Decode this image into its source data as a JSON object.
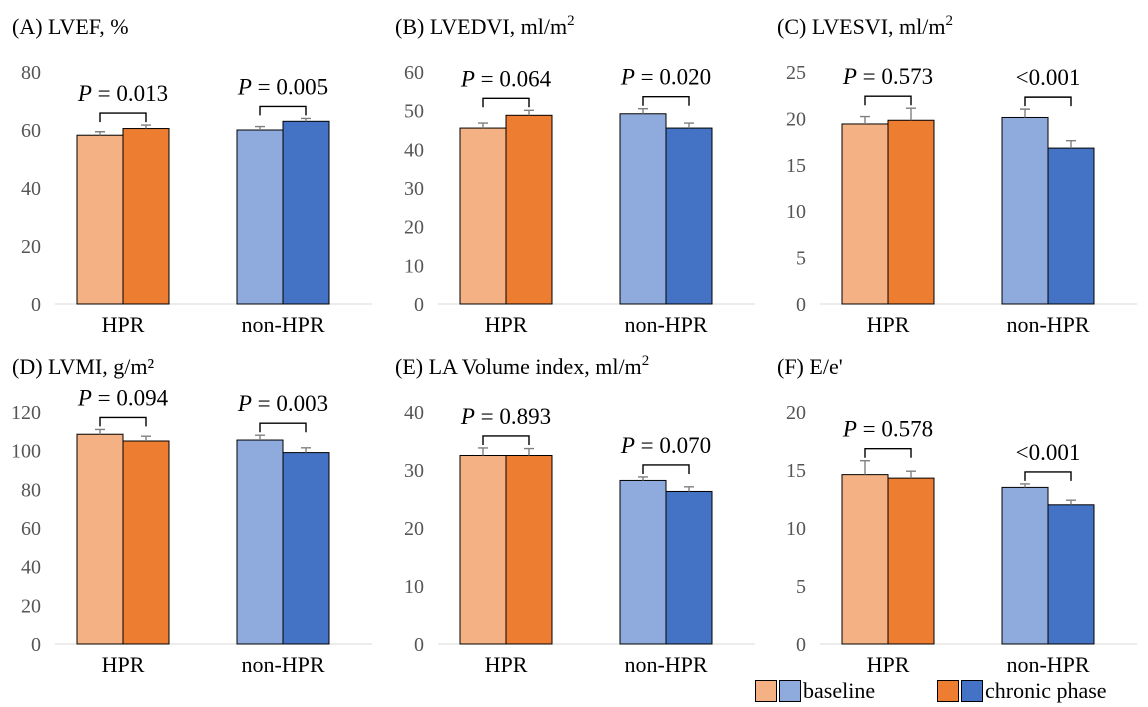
{
  "chart_data": [
    {
      "type": "bar",
      "title": "(A) LVEF, %",
      "title_sup": "",
      "ylim": [
        0,
        80
      ],
      "yticks": [
        0,
        20,
        40,
        60,
        80
      ],
      "categories": [
        "HPR",
        "non-HPR"
      ],
      "series": [
        {
          "name": "baseline",
          "values": [
            58.2,
            60.0
          ],
          "errors": [
            1.2,
            1.2
          ]
        },
        {
          "name": "chronic phase",
          "values": [
            60.5,
            63.0
          ],
          "errors": [
            1.2,
            1.0
          ]
        }
      ],
      "p_values": [
        "0.013",
        "0.005"
      ],
      "p_prefix": [
        true,
        true
      ]
    },
    {
      "type": "bar",
      "title": "(B) LVEDVI, ml/m",
      "title_sup": "2",
      "ylim": [
        0,
        60
      ],
      "yticks": [
        0,
        10,
        20,
        30,
        40,
        50,
        60
      ],
      "categories": [
        "HPR",
        "non-HPR"
      ],
      "series": [
        {
          "name": "baseline",
          "values": [
            45.5,
            49.2
          ],
          "errors": [
            1.3,
            1.3
          ]
        },
        {
          "name": "chronic phase",
          "values": [
            48.8,
            45.5
          ],
          "errors": [
            1.3,
            1.3
          ]
        }
      ],
      "p_values": [
        "0.064",
        "0.020"
      ],
      "p_prefix": [
        true,
        true
      ]
    },
    {
      "type": "bar",
      "title": "(C) LVESVI, ml/m",
      "title_sup": "2",
      "ylim": [
        0,
        25
      ],
      "yticks": [
        0,
        5,
        10,
        15,
        20,
        25
      ],
      "categories": [
        "HPR",
        "non-HPR"
      ],
      "series": [
        {
          "name": "baseline",
          "values": [
            19.4,
            20.1
          ],
          "errors": [
            0.8,
            0.9
          ]
        },
        {
          "name": "chronic phase",
          "values": [
            19.8,
            16.8
          ],
          "errors": [
            1.3,
            0.8
          ]
        }
      ],
      "p_values": [
        "0.573",
        "<0.001"
      ],
      "p_prefix": [
        true,
        false
      ]
    },
    {
      "type": "bar",
      "title": "(D) LVMI, g/m²",
      "title_sup": "",
      "ylim": [
        0,
        120
      ],
      "yticks": [
        0,
        20,
        40,
        60,
        80,
        100,
        120
      ],
      "categories": [
        "HPR",
        "non-HPR"
      ],
      "series": [
        {
          "name": "baseline",
          "values": [
            108.5,
            105.5
          ],
          "errors": [
            2.5,
            2.5
          ]
        },
        {
          "name": "chronic phase",
          "values": [
            105.0,
            99.0
          ],
          "errors": [
            2.5,
            2.5
          ]
        }
      ],
      "p_values": [
        "0.094",
        "0.003"
      ],
      "p_prefix": [
        true,
        true
      ]
    },
    {
      "type": "bar",
      "title": "(E) LA Volume index, ml/m",
      "title_sup": "2",
      "ylim": [
        0,
        40
      ],
      "yticks": [
        0,
        10,
        20,
        30,
        40
      ],
      "categories": [
        "HPR",
        "non-HPR"
      ],
      "series": [
        {
          "name": "baseline",
          "values": [
            32.5,
            28.2
          ],
          "errors": [
            1.3,
            0.6
          ]
        },
        {
          "name": "chronic phase",
          "values": [
            32.5,
            26.3
          ],
          "errors": [
            1.2,
            0.8
          ]
        }
      ],
      "p_values": [
        "0.893",
        "0.070"
      ],
      "p_prefix": [
        true,
        true
      ]
    },
    {
      "type": "bar",
      "title": "(F) E/e'",
      "title_sup": "",
      "ylim": [
        0,
        20
      ],
      "yticks": [
        0,
        5,
        10,
        15,
        20
      ],
      "categories": [
        "HPR",
        "non-HPR"
      ],
      "series": [
        {
          "name": "baseline",
          "values": [
            14.6,
            13.5
          ],
          "errors": [
            1.2,
            0.3
          ]
        },
        {
          "name": "chronic phase",
          "values": [
            14.3,
            12.0
          ],
          "errors": [
            0.6,
            0.4
          ]
        }
      ],
      "p_values": [
        "0.578",
        "<0.001"
      ],
      "p_prefix": [
        true,
        false
      ]
    }
  ],
  "p_label": "P",
  "colors": {
    "baseline": [
      "#f4b183",
      "#8faadc"
    ],
    "chronic phase": [
      "#ed7d31",
      "#4472c4"
    ]
  },
  "legend": {
    "position": "bottom-right",
    "items": [
      {
        "label": "baseline",
        "swatches": [
          "#f4b183",
          "#8faadc"
        ]
      },
      {
        "label": "chronic phase",
        "swatches": [
          "#ed7d31",
          "#4472c4"
        ]
      }
    ]
  }
}
